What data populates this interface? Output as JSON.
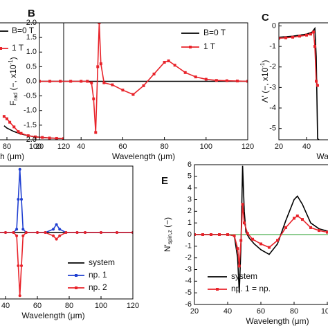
{
  "chart_data": [
    {
      "type": "line",
      "xlabel": "Wavelength (μm)",
      "xlim": [
        20,
        120
      ],
      "ylim": [
        0,
        1
      ],
      "xticks": [
        80,
        100,
        120
      ],
      "series": [
        {
          "name": "B=0 T",
          "color": "#000000",
          "x": [
            78,
            80,
            85,
            90,
            95,
            100,
            110,
            120
          ],
          "values": [
            0.12,
            0.1,
            0.07,
            0.05,
            0.035,
            0.025,
            0.015,
            0.01
          ]
        },
        {
          "name": "1 T",
          "color": "#e8232a",
          "marker": "square",
          "x": [
            78,
            80,
            82,
            85,
            88,
            90,
            95,
            100,
            105,
            110,
            115,
            120
          ],
          "values": [
            0.2,
            0.18,
            0.15,
            0.11,
            0.07,
            0.055,
            0.035,
            0.025,
            0.02,
            0.015,
            0.012,
            0.01
          ]
        }
      ]
    },
    {
      "type": "line",
      "label": "B",
      "xlabel": "Wavelength (μm)",
      "ylabel": [
        "F",
        "rad",
        " (−, x10",
        "-1",
        ")"
      ],
      "xlim": [
        20,
        120
      ],
      "ylim": [
        -2,
        2
      ],
      "xticks": [
        20,
        40,
        60,
        80,
        100,
        120
      ],
      "yticks": [
        {
          "value": -2,
          "label": "-2.0"
        },
        {
          "value": -1.5,
          "label": "-1.5"
        },
        {
          "value": -1,
          "label": "-1.0"
        },
        {
          "value": -0.5,
          "label": "-0.5"
        },
        {
          "value": 0,
          "label": "0.0"
        },
        {
          "value": 0.5,
          "label": "0.5"
        },
        {
          "value": 1,
          "label": "1.0"
        },
        {
          "value": 1.5,
          "label": "1.5"
        },
        {
          "value": 2,
          "label": "2.0"
        }
      ],
      "series": [
        {
          "name": "B=0 T",
          "color": "#000000",
          "x": [
            20,
            120
          ],
          "values": [
            0,
            0
          ]
        },
        {
          "name": "1 T",
          "color": "#e8232a",
          "marker": "square",
          "x": [
            20,
            25,
            30,
            35,
            40,
            43,
            45,
            46,
            47,
            48,
            48.7,
            49.5,
            51,
            55,
            60,
            65,
            70,
            75,
            80,
            82,
            85,
            90,
            95,
            100,
            105,
            110,
            115,
            120
          ],
          "values": [
            0,
            0,
            0,
            0,
            0,
            0,
            -0.05,
            -0.6,
            -1.75,
            0.5,
            2.0,
            0.6,
            -0.05,
            -0.12,
            -0.3,
            -0.45,
            -0.15,
            0.25,
            0.65,
            0.7,
            0.55,
            0.3,
            0.15,
            0.07,
            0.03,
            0.02,
            0.01,
            0
          ]
        }
      ]
    },
    {
      "type": "line",
      "label": "C",
      "xlabel": "Wavelength (μm)",
      "ylabel": [
        "Λ' (−, x10",
        "-1",
        ")"
      ],
      "xlim": [
        20,
        120
      ],
      "ylim": [
        -5.55,
        0.15
      ],
      "xticks": [
        20,
        40
      ],
      "yticks": [
        -5,
        -4,
        -3,
        -2,
        -1,
        0
      ],
      "series": [
        {
          "color": "#000000",
          "x": [
            20,
            30,
            40,
            44,
            46,
            47,
            48,
            49
          ],
          "values": [
            -0.55,
            -0.5,
            -0.4,
            -0.3,
            -0.12,
            -1.5,
            -5.5,
            -5.55
          ]
        },
        {
          "color": "#e8232a",
          "marker": "square",
          "x": [
            20,
            25,
            30,
            35,
            40,
            43,
            45,
            46,
            47,
            48
          ],
          "values": [
            -0.6,
            -0.58,
            -0.55,
            -0.5,
            -0.45,
            -0.4,
            -0.3,
            -1.0,
            -2.7,
            -2.9
          ]
        }
      ]
    },
    {
      "type": "line",
      "xlabel": "Wavelength (μm)",
      "xlim": [
        20,
        120
      ],
      "ylim": [
        -1,
        1
      ],
      "xticks": [
        40,
        60,
        80,
        100,
        120
      ],
      "series": [
        {
          "name": "system",
          "color": "#000000",
          "x": [
            20,
            120
          ],
          "values": [
            0,
            0
          ]
        },
        {
          "name": "np. 1",
          "color": "#1f3fd1",
          "marker": "circle",
          "x": [
            20,
            30,
            40,
            45,
            47,
            48,
            49,
            50,
            51,
            53,
            60,
            65,
            70,
            72,
            74,
            78,
            85,
            90,
            100,
            110,
            120
          ],
          "values": [
            0,
            0,
            0,
            0,
            0.05,
            0.5,
            0.95,
            0.5,
            0.05,
            0,
            0,
            0,
            0.05,
            0.12,
            0.05,
            0,
            0,
            0,
            0,
            0,
            0
          ]
        },
        {
          "name": "np. 2",
          "color": "#e8232a",
          "marker": "circle",
          "x": [
            20,
            30,
            40,
            45,
            47,
            48,
            49,
            50,
            51,
            53,
            60,
            65,
            70,
            72,
            74,
            78,
            85,
            90,
            100,
            110,
            120
          ],
          "values": [
            0,
            0,
            0,
            0,
            -0.05,
            -0.5,
            -0.95,
            -0.5,
            -0.05,
            0,
            0,
            0,
            -0.05,
            -0.1,
            -0.05,
            0,
            0,
            0,
            0,
            0,
            0
          ]
        }
      ]
    },
    {
      "type": "line",
      "label": "E",
      "xlabel": "Wavelength (μm)",
      "ylabel": [
        "N'",
        "spin,z",
        " (−)"
      ],
      "xlim": [
        20,
        120
      ],
      "ylim": [
        -6,
        6
      ],
      "xticks": [
        20,
        40,
        60,
        80,
        100
      ],
      "yticks": [
        -6,
        -5,
        -4,
        -3,
        -2,
        -1,
        0,
        1,
        2,
        3,
        4,
        5,
        6
      ],
      "hline": {
        "value": 0,
        "color": "#4caf50"
      },
      "series": [
        {
          "name": "system",
          "color": "#000000",
          "x": [
            20,
            40,
            44,
            46,
            47,
            48,
            49,
            50,
            51,
            53,
            56,
            60,
            65,
            70,
            75,
            80,
            82,
            85,
            90,
            95,
            100,
            110,
            120
          ],
          "values": [
            0,
            0,
            -0.1,
            -2,
            -5,
            -1,
            5.9,
            2,
            0.2,
            -0.3,
            -0.8,
            -1.3,
            -1.7,
            -0.8,
            1.2,
            3.0,
            3.3,
            2.6,
            1.0,
            0.5,
            0.3,
            0.15,
            0.1
          ]
        },
        {
          "name": "np. 1 = np.",
          "color": "#e8232a",
          "marker": "square",
          "x": [
            20,
            25,
            30,
            35,
            40,
            44,
            46,
            47,
            48,
            49,
            50,
            52,
            55,
            60,
            65,
            70,
            75,
            80,
            82,
            85,
            90,
            95,
            100,
            110,
            120
          ],
          "values": [
            0,
            0,
            0,
            0,
            0,
            -0.1,
            -1.2,
            -2.7,
            -0.5,
            2.6,
            1.0,
            0.1,
            -0.4,
            -0.8,
            -1.1,
            -0.5,
            0.6,
            1.4,
            1.6,
            1.3,
            0.6,
            0.35,
            0.2,
            0.1,
            0.05
          ]
        }
      ]
    }
  ]
}
